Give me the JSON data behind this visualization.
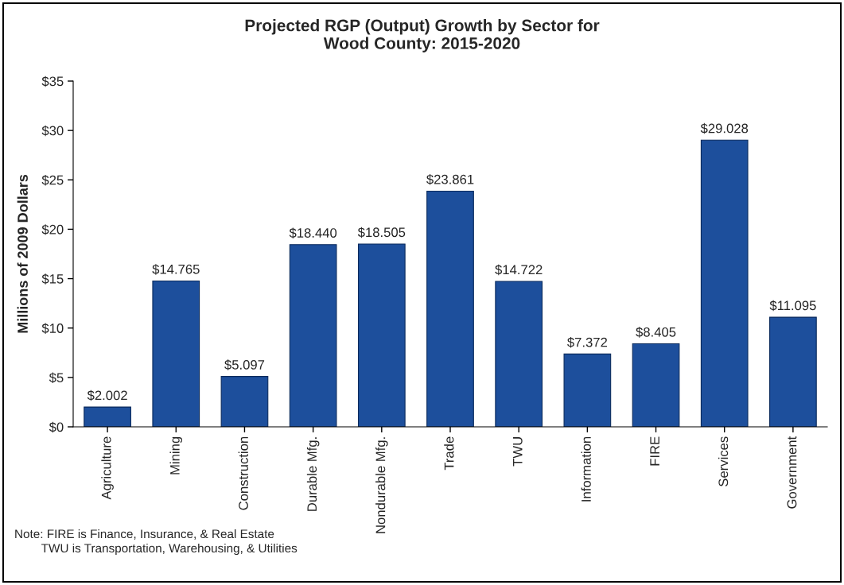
{
  "chart_data": {
    "type": "bar",
    "title": "Projected RGP (Output) Growth by Sector for\nWood County: 2015-2020",
    "ylabel": "Millions of 2009 Dollars",
    "categories": [
      "Agriculture",
      "Mining",
      "Construction",
      "Durable Mfg.",
      "Nondurable Mfg.",
      "Trade",
      "TWU",
      "Information",
      "FIRE",
      "Services",
      "Government"
    ],
    "values": [
      2.002,
      14.765,
      5.097,
      18.44,
      18.505,
      23.861,
      14.722,
      7.372,
      8.405,
      29.028,
      11.095
    ],
    "value_labels": [
      "$2.002",
      "$14.765",
      "$5.097",
      "$18.440",
      "$18.505",
      "$23.861",
      "$14.722",
      "$7.372",
      "$8.405",
      "$29.028",
      "$11.095"
    ],
    "color": "#1d4f9c",
    "ylim": [
      0,
      35
    ],
    "yticks": [
      {
        "value": 0,
        "label": "$0"
      },
      {
        "value": 5,
        "label": "$5"
      },
      {
        "value": 10,
        "label": "$10"
      },
      {
        "value": 15,
        "label": "$15"
      },
      {
        "value": 20,
        "label": "$20"
      },
      {
        "value": 25,
        "label": "$25"
      },
      {
        "value": 30,
        "label": "$30"
      },
      {
        "value": 35,
        "label": "$35"
      }
    ],
    "grid": false,
    "legend": false,
    "annotations": [
      "Note: FIRE is Finance, Insurance, & Real Estate",
      "        TWU is Transportation, Warehousing, & Utilities"
    ]
  }
}
